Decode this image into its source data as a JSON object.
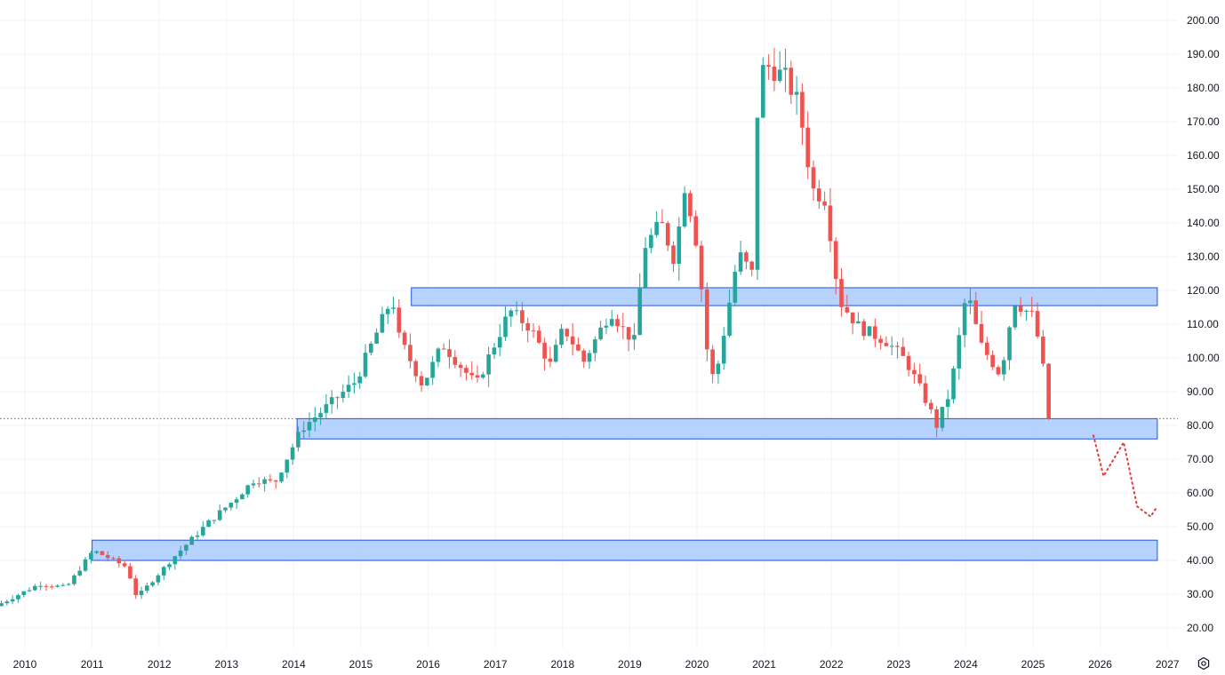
{
  "colors": {
    "up": "#26a69a",
    "down": "#ef5350",
    "zone_fill": "#a9cbff",
    "zone_stroke": "#1e53e5",
    "grid": "#f0f3fa",
    "projection": "#e53935",
    "price_line": "#e53935",
    "text": "#131722"
  },
  "icons": {
    "settings": "gear-icon"
  },
  "chart_data": {
    "type": "candlestick",
    "title": "",
    "xlabel": "",
    "ylabel": "",
    "ylim": [
      15,
      205
    ],
    "xlim": [
      2009.6,
      2027.4
    ],
    "grid": true,
    "y_ticks": [
      "20.00",
      "30.00",
      "40.00",
      "50.00",
      "60.00",
      "70.00",
      "80.00",
      "90.00",
      "100.00",
      "110.00",
      "120.00",
      "130.00",
      "140.00",
      "150.00",
      "160.00",
      "170.00",
      "180.00",
      "190.00",
      "200.00"
    ],
    "x_ticks": [
      "2010",
      "2011",
      "2012",
      "2013",
      "2014",
      "2015",
      "2016",
      "2017",
      "2018",
      "2019",
      "2020",
      "2021",
      "2022",
      "2023",
      "2024",
      "2025",
      "2026",
      "2027"
    ],
    "current_price": 82,
    "zones": [
      {
        "x_start": 2011.0,
        "x_end": 2026.85,
        "y_low": 40,
        "y_high": 46
      },
      {
        "x_start": 2014.05,
        "x_end": 2026.85,
        "y_low": 76,
        "y_high": 82
      },
      {
        "x_start": 2015.75,
        "x_end": 2026.85,
        "y_low": 115.5,
        "y_high": 120.8
      }
    ],
    "projection": {
      "x": [
        2025.9,
        2026.05,
        2026.35,
        2026.55,
        2026.75,
        2026.85
      ],
      "y": [
        77,
        65,
        75,
        56,
        53,
        56
      ]
    },
    "anchors": [
      [
        2009.6,
        26
      ],
      [
        2010.3,
        33
      ],
      [
        2010.7,
        32
      ],
      [
        2011.1,
        43
      ],
      [
        2011.6,
        38
      ],
      [
        2011.75,
        29
      ],
      [
        2012.3,
        41
      ],
      [
        2012.8,
        51
      ],
      [
        2013.2,
        58
      ],
      [
        2013.5,
        64
      ],
      [
        2013.8,
        63
      ],
      [
        2014.2,
        79
      ],
      [
        2014.6,
        86
      ],
      [
        2015.0,
        93
      ],
      [
        2015.55,
        118
      ],
      [
        2015.65,
        106
      ],
      [
        2015.9,
        96
      ],
      [
        2016.0,
        92
      ],
      [
        2016.3,
        104
      ],
      [
        2016.8,
        92
      ],
      [
        2017.0,
        101
      ],
      [
        2017.3,
        114
      ],
      [
        2017.6,
        109
      ],
      [
        2017.9,
        98
      ],
      [
        2018.1,
        109
      ],
      [
        2018.4,
        99
      ],
      [
        2018.8,
        114
      ],
      [
        2019.0,
        108
      ],
      [
        2019.15,
        105
      ],
      [
        2019.3,
        133
      ],
      [
        2019.55,
        140
      ],
      [
        2019.75,
        129
      ],
      [
        2019.9,
        151
      ],
      [
        2020.05,
        138
      ],
      [
        2020.2,
        112
      ],
      [
        2020.25,
        98
      ],
      [
        2020.35,
        93
      ],
      [
        2020.7,
        131
      ],
      [
        2020.9,
        125
      ],
      [
        2021.0,
        182
      ],
      [
        2021.1,
        187
      ],
      [
        2021.4,
        183
      ],
      [
        2021.6,
        175
      ],
      [
        2021.8,
        150
      ],
      [
        2022.0,
        147
      ],
      [
        2022.2,
        117
      ],
      [
        2022.5,
        109
      ],
      [
        2022.9,
        105
      ],
      [
        2023.2,
        99
      ],
      [
        2023.5,
        87
      ],
      [
        2023.65,
        80
      ],
      [
        2023.85,
        90
      ],
      [
        2024.1,
        120
      ],
      [
        2024.3,
        104
      ],
      [
        2024.6,
        95
      ],
      [
        2024.8,
        117
      ],
      [
        2025.1,
        112
      ],
      [
        2025.25,
        95
      ],
      [
        2025.3,
        82
      ]
    ]
  }
}
